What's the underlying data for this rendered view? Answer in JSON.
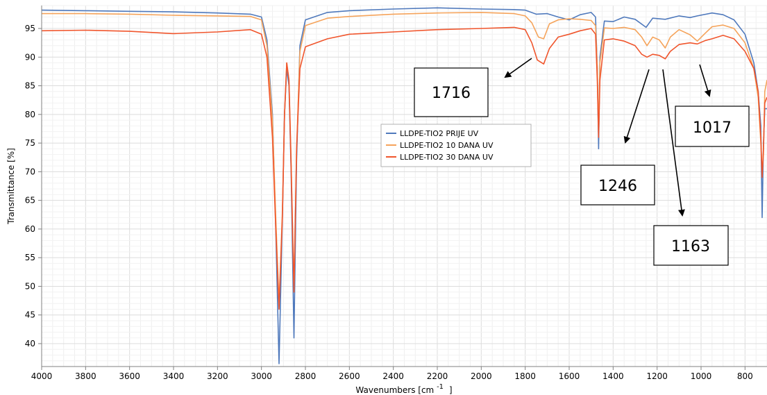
{
  "chart_data": {
    "type": "line",
    "title": "",
    "xlabel": "Wavenumbers [cm",
    "xlabel_sup": "-1",
    "xlabel_close": "]",
    "ylabel": "Transmittance [%]",
    "xlim": [
      4000,
      700
    ],
    "ylim": [
      36,
      99
    ],
    "x_ticks": [
      4000,
      3800,
      3600,
      3400,
      3200,
      3000,
      2800,
      2600,
      2400,
      2200,
      2000,
      1800,
      1600,
      1400,
      1200,
      1000,
      800
    ],
    "y_ticks": [
      40,
      45,
      50,
      55,
      60,
      65,
      70,
      75,
      80,
      85,
      90,
      95
    ],
    "grid": true,
    "legend_position": "center",
    "series": [
      {
        "name": "LLDPE-TIO2 PRIJE UV",
        "color": "#4f79bc",
        "points": [
          [
            4000,
            98.2
          ],
          [
            3800,
            98.1
          ],
          [
            3600,
            98.0
          ],
          [
            3400,
            97.9
          ],
          [
            3200,
            97.7
          ],
          [
            3050,
            97.5
          ],
          [
            3000,
            97.0
          ],
          [
            2975,
            93
          ],
          [
            2950,
            80
          ],
          [
            2935,
            60
          ],
          [
            2920,
            36.5
          ],
          [
            2905,
            62
          ],
          [
            2895,
            80
          ],
          [
            2885,
            88
          ],
          [
            2875,
            85
          ],
          [
            2865,
            70
          ],
          [
            2852,
            41
          ],
          [
            2840,
            72
          ],
          [
            2825,
            92
          ],
          [
            2800,
            96.5
          ],
          [
            2700,
            97.8
          ],
          [
            2600,
            98.1
          ],
          [
            2400,
            98.4
          ],
          [
            2200,
            98.6
          ],
          [
            2000,
            98.4
          ],
          [
            1850,
            98.3
          ],
          [
            1800,
            98.2
          ],
          [
            1750,
            97.5
          ],
          [
            1700,
            97.6
          ],
          [
            1650,
            97.0
          ],
          [
            1600,
            96.5
          ],
          [
            1550,
            97.4
          ],
          [
            1500,
            97.8
          ],
          [
            1480,
            97.0
          ],
          [
            1472,
            88
          ],
          [
            1466,
            74
          ],
          [
            1460,
            90
          ],
          [
            1440,
            96.3
          ],
          [
            1400,
            96.2
          ],
          [
            1350,
            97.0
          ],
          [
            1300,
            96.6
          ],
          [
            1250,
            95.2
          ],
          [
            1220,
            96.8
          ],
          [
            1163,
            96.6
          ],
          [
            1100,
            97.2
          ],
          [
            1050,
            96.9
          ],
          [
            1017,
            97.2
          ],
          [
            950,
            97.7
          ],
          [
            900,
            97.4
          ],
          [
            850,
            96.5
          ],
          [
            800,
            94
          ],
          [
            760,
            89
          ],
          [
            740,
            84
          ],
          [
            728,
            78
          ],
          [
            722,
            62
          ],
          [
            716,
            75
          ],
          [
            710,
            81
          ],
          [
            700,
            81
          ]
        ]
      },
      {
        "name": "LLDPE-TIO2 10 DANA UV",
        "color": "#f5a35a",
        "points": [
          [
            4000,
            97.6
          ],
          [
            3800,
            97.6
          ],
          [
            3600,
            97.5
          ],
          [
            3400,
            97.3
          ],
          [
            3200,
            97.2
          ],
          [
            3050,
            97.1
          ],
          [
            3000,
            96.5
          ],
          [
            2975,
            92
          ],
          [
            2950,
            79
          ],
          [
            2935,
            62
          ],
          [
            2920,
            47
          ],
          [
            2905,
            63
          ],
          [
            2895,
            80
          ],
          [
            2885,
            89
          ],
          [
            2875,
            86
          ],
          [
            2865,
            72
          ],
          [
            2852,
            49
          ],
          [
            2840,
            74
          ],
          [
            2825,
            91
          ],
          [
            2800,
            95.5
          ],
          [
            2700,
            96.8
          ],
          [
            2600,
            97.1
          ],
          [
            2400,
            97.5
          ],
          [
            2200,
            97.7
          ],
          [
            2000,
            97.8
          ],
          [
            1850,
            97.6
          ],
          [
            1800,
            97.2
          ],
          [
            1770,
            96
          ],
          [
            1740,
            93.5
          ],
          [
            1716,
            93.2
          ],
          [
            1690,
            95.8
          ],
          [
            1650,
            96.5
          ],
          [
            1600,
            96.7
          ],
          [
            1550,
            96.6
          ],
          [
            1500,
            96.4
          ],
          [
            1480,
            95.5
          ],
          [
            1472,
            88
          ],
          [
            1466,
            77
          ],
          [
            1460,
            89
          ],
          [
            1440,
            95.1
          ],
          [
            1400,
            95.0
          ],
          [
            1350,
            95.2
          ],
          [
            1300,
            94.8
          ],
          [
            1270,
            93.5
          ],
          [
            1246,
            92.0
          ],
          [
            1220,
            93.5
          ],
          [
            1190,
            93.0
          ],
          [
            1163,
            91.6
          ],
          [
            1140,
            93.5
          ],
          [
            1100,
            94.8
          ],
          [
            1050,
            93.9
          ],
          [
            1017,
            92.8
          ],
          [
            980,
            94.2
          ],
          [
            950,
            95.3
          ],
          [
            900,
            95.6
          ],
          [
            850,
            95.0
          ],
          [
            800,
            92.5
          ],
          [
            760,
            88
          ],
          [
            740,
            83
          ],
          [
            728,
            75
          ],
          [
            722,
            70
          ],
          [
            716,
            73
          ],
          [
            710,
            84
          ],
          [
            700,
            86
          ]
        ]
      },
      {
        "name": "LLDPE-TIO2 30 DANA UV",
        "color": "#f0552c",
        "points": [
          [
            4000,
            94.6
          ],
          [
            3800,
            94.7
          ],
          [
            3600,
            94.5
          ],
          [
            3400,
            94.1
          ],
          [
            3200,
            94.4
          ],
          [
            3050,
            94.8
          ],
          [
            3000,
            94.0
          ],
          [
            2975,
            90
          ],
          [
            2950,
            76
          ],
          [
            2935,
            60
          ],
          [
            2920,
            46
          ],
          [
            2905,
            62
          ],
          [
            2895,
            80
          ],
          [
            2885,
            89
          ],
          [
            2875,
            86
          ],
          [
            2865,
            71
          ],
          [
            2852,
            49
          ],
          [
            2840,
            74
          ],
          [
            2825,
            88
          ],
          [
            2800,
            91.8
          ],
          [
            2700,
            93.2
          ],
          [
            2600,
            94.0
          ],
          [
            2400,
            94.4
          ],
          [
            2200,
            94.8
          ],
          [
            2000,
            95.0
          ],
          [
            1850,
            95.2
          ],
          [
            1800,
            94.8
          ],
          [
            1770,
            92.5
          ],
          [
            1745,
            89.5
          ],
          [
            1716,
            88.8
          ],
          [
            1690,
            91.5
          ],
          [
            1650,
            93.5
          ],
          [
            1600,
            94.0
          ],
          [
            1550,
            94.6
          ],
          [
            1500,
            95.0
          ],
          [
            1480,
            94.0
          ],
          [
            1472,
            86
          ],
          [
            1466,
            76
          ],
          [
            1460,
            86
          ],
          [
            1440,
            93.0
          ],
          [
            1400,
            93.2
          ],
          [
            1350,
            92.8
          ],
          [
            1300,
            92.0
          ],
          [
            1270,
            90.5
          ],
          [
            1246,
            90.0
          ],
          [
            1220,
            90.5
          ],
          [
            1190,
            90.3
          ],
          [
            1163,
            89.7
          ],
          [
            1140,
            91.0
          ],
          [
            1100,
            92.2
          ],
          [
            1050,
            92.5
          ],
          [
            1017,
            92.3
          ],
          [
            980,
            92.9
          ],
          [
            950,
            93.2
          ],
          [
            900,
            93.8
          ],
          [
            850,
            93.2
          ],
          [
            800,
            91.0
          ],
          [
            760,
            88
          ],
          [
            740,
            84
          ],
          [
            728,
            76
          ],
          [
            722,
            69
          ],
          [
            716,
            74
          ],
          [
            710,
            82
          ],
          [
            700,
            83
          ]
        ]
      }
    ],
    "annotations": [
      "1716",
      "1246",
      "1017",
      "1163"
    ]
  }
}
